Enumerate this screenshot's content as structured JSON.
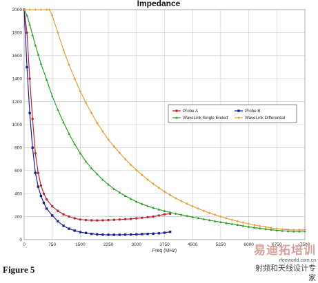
{
  "chart_data": {
    "type": "line",
    "title": "Impedance",
    "xlabel": "Freq (MHz)",
    "ylabel": "",
    "xlim": [
      0,
      7500
    ],
    "ylim": [
      0,
      2000
    ],
    "x_ticks": [
      "0",
      "750",
      "1500",
      "2250",
      "3000",
      "3750",
      "4500",
      "5250",
      "6000",
      "6750",
      "7500"
    ],
    "y_ticks": [
      "0",
      "200",
      "400",
      "600",
      "800",
      "1000",
      "1200",
      "1400",
      "1600",
      "1800",
      "2000"
    ],
    "grid": true,
    "legend_position": "right-center",
    "series": [
      {
        "name": "Probe A",
        "color": "#c0202a",
        "marker": "circle",
        "x": [
          0,
          75,
          150,
          225,
          300,
          375,
          450,
          525,
          600,
          750,
          900,
          1050,
          1200,
          1350,
          1500,
          1650,
          1800,
          1950,
          2100,
          2250,
          2400,
          2550,
          2700,
          2850,
          3000,
          3150,
          3300,
          3450,
          3600,
          3750,
          3900
        ],
        "y": [
          2000,
          1800,
          1400,
          1050,
          750,
          580,
          470,
          400,
          350,
          290,
          250,
          220,
          200,
          185,
          175,
          170,
          168,
          167,
          168,
          170,
          172,
          175,
          178,
          180,
          185,
          190,
          195,
          200,
          210,
          220,
          225
        ]
      },
      {
        "name": "Probe B",
        "color": "#1c1f9c",
        "marker": "square",
        "x": [
          0,
          75,
          150,
          225,
          300,
          375,
          450,
          525,
          600,
          750,
          900,
          1050,
          1200,
          1350,
          1500,
          1650,
          1800,
          1950,
          2100,
          2250,
          2400,
          2550,
          2700,
          2850,
          3000,
          3150,
          3300,
          3450,
          3600,
          3750,
          3900
        ],
        "y": [
          2000,
          1500,
          1100,
          800,
          580,
          460,
          380,
          320,
          270,
          210,
          160,
          120,
          95,
          78,
          65,
          58,
          50,
          46,
          43,
          42,
          42,
          42,
          43,
          44,
          46,
          48,
          50,
          52,
          55,
          60,
          68
        ]
      },
      {
        "name": "WaveLink Single Ended",
        "color": "#2aa02a",
        "marker": "triangle",
        "x": [
          0,
          75,
          150,
          225,
          300,
          375,
          450,
          600,
          750,
          900,
          1050,
          1200,
          1350,
          1500,
          1650,
          1800,
          1950,
          2100,
          2250,
          2400,
          2550,
          2700,
          2850,
          3000,
          3150,
          3300,
          3450,
          3600,
          3750,
          3900,
          4050,
          4200,
          4350,
          4500,
          4650,
          4800,
          4950,
          5100,
          5250,
          5400,
          5550,
          5700,
          5850,
          6000,
          6150,
          6300,
          6450,
          6600,
          6750,
          6900,
          7050,
          7200,
          7350,
          7500
        ],
        "y": [
          2000,
          1950,
          1870,
          1780,
          1690,
          1610,
          1530,
          1390,
          1250,
          1130,
          1020,
          920,
          830,
          750,
          680,
          620,
          570,
          520,
          480,
          440,
          410,
          380,
          355,
          330,
          310,
          292,
          276,
          262,
          249,
          237,
          226,
          216,
          206,
          196,
          187,
          178,
          169,
          160,
          152,
          144,
          136,
          128,
          120,
          112,
          105,
          98,
          92,
          86,
          81,
          77,
          74,
          72,
          72,
          73
        ]
      },
      {
        "name": "WaveLink Differential",
        "color": "#e8a03a",
        "marker": "diamond",
        "x": [
          0,
          150,
          300,
          450,
          600,
          675,
          750,
          900,
          1050,
          1200,
          1350,
          1500,
          1650,
          1800,
          1950,
          2100,
          2250,
          2400,
          2550,
          2700,
          2850,
          3000,
          3150,
          3300,
          3450,
          3600,
          3750,
          3900,
          4050,
          4200,
          4350,
          4500,
          4650,
          4800,
          4950,
          5100,
          5250,
          5400,
          5550,
          5700,
          5850,
          6000,
          6150,
          6300,
          6450,
          6600,
          6750,
          6900,
          7050,
          7200,
          7350,
          7500
        ],
        "y": [
          2000,
          2000,
          2000,
          2000,
          2000,
          2000,
          1950,
          1800,
          1650,
          1520,
          1400,
          1290,
          1190,
          1100,
          1015,
          940,
          870,
          810,
          755,
          700,
          650,
          605,
          562,
          522,
          485,
          450,
          418,
          388,
          360,
          335,
          312,
          290,
          270,
          250,
          232,
          216,
          200,
          186,
          172,
          160,
          148,
          137,
          127,
          118,
          110,
          102,
          95,
          90,
          86,
          84,
          84,
          86
        ]
      }
    ]
  },
  "figure_caption": "Figure 5",
  "watermark": {
    "brand": "易迪拓培训",
    "url": "rfeeworld.com.cn",
    "subtitle": "射频和天线设计专家"
  }
}
